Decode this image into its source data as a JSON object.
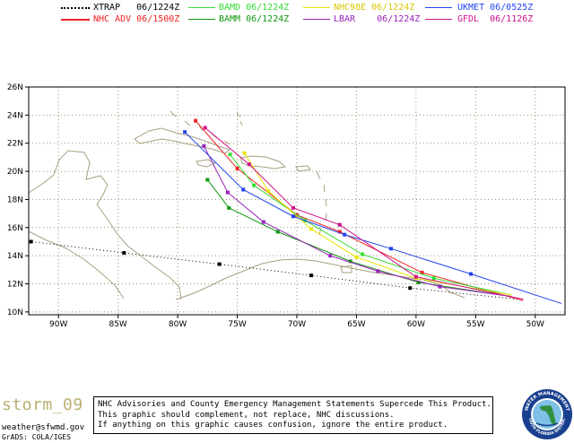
{
  "legend": {
    "xtrap": {
      "label": "XTRAP   06/1224Z",
      "color": "#000000",
      "style": "dotted"
    },
    "nhc_adv": {
      "label": "NHC ADV 06/1500Z",
      "color": "#ee2222",
      "style": "solid"
    },
    "bamd": {
      "label": "BAMD 06/1224Z",
      "color": "#33dd33",
      "style": "solid"
    },
    "bamm": {
      "label": "BAMM 06/1224Z",
      "color": "#119911",
      "style": "solid"
    },
    "nhc98e": {
      "label": "NHC98E 06/1224Z",
      "color": "#e6e600",
      "style": "solid"
    },
    "lbar": {
      "label": "LBAR    06/1224Z",
      "color": "#9922bb",
      "style": "solid"
    },
    "ukmet": {
      "label": "UKMET 06/0525Z",
      "color": "#2244ee",
      "style": "solid"
    },
    "gfdl": {
      "label": "GFDL  06/1126Z",
      "color": "#cc1188",
      "style": "solid"
    }
  },
  "axes": {
    "x_ticks": [
      "90W",
      "85W",
      "80W",
      "75W",
      "70W",
      "65W",
      "60W",
      "55W",
      "50W"
    ],
    "y_ticks": [
      "26N",
      "24N",
      "22N",
      "20N",
      "18N",
      "16N",
      "14N",
      "12N",
      "10N"
    ]
  },
  "chart_data": {
    "type": "line",
    "x_unit": "longitude (deg W)",
    "y_unit": "latitude (deg N)",
    "xlim": [
      -92.5,
      -47.5
    ],
    "ylim": [
      9.8,
      26
    ],
    "series": [
      {
        "name": "XTRAP",
        "color": "#000000",
        "dash": "1,3",
        "points": [
          [
            -51.5,
            10.9
          ],
          [
            -60.5,
            11.7
          ],
          [
            -68.8,
            12.6
          ],
          [
            -76.5,
            13.4
          ],
          [
            -84.5,
            14.2
          ],
          [
            -92.3,
            15.0
          ]
        ]
      },
      {
        "name": "NHC ADV",
        "color": "#ee2222",
        "points": [
          [
            -51.0,
            10.8
          ],
          [
            -59.5,
            12.8
          ],
          [
            -66.4,
            15.7
          ],
          [
            -70.0,
            16.9
          ],
          [
            -75.0,
            20.2
          ],
          [
            -78.5,
            23.6
          ]
        ]
      },
      {
        "name": "BAMD",
        "color": "#33dd33",
        "points": [
          [
            -52.0,
            11.2
          ],
          [
            -58.5,
            12.4
          ],
          [
            -64.5,
            14.1
          ],
          [
            -69.3,
            16.5
          ],
          [
            -73.6,
            19.0
          ],
          [
            -75.6,
            21.2
          ]
        ]
      },
      {
        "name": "BAMM",
        "color": "#119911",
        "points": [
          [
            -52.0,
            11.1
          ],
          [
            -59.8,
            12.1
          ],
          [
            -65.5,
            13.6
          ],
          [
            -71.6,
            15.7
          ],
          [
            -75.7,
            17.4
          ],
          [
            -77.5,
            19.4
          ]
        ]
      },
      {
        "name": "NHC98E",
        "color": "#e6e600",
        "points": [
          [
            -52.0,
            11.2
          ],
          [
            -60.0,
            12.4
          ],
          [
            -65.0,
            13.9
          ],
          [
            -68.8,
            15.9
          ],
          [
            -72.4,
            18.6
          ],
          [
            -74.4,
            21.3
          ]
        ]
      },
      {
        "name": "LBAR",
        "color": "#9922bb",
        "points": [
          [
            -52.0,
            11.1
          ],
          [
            -58.0,
            11.8
          ],
          [
            -63.2,
            12.9
          ],
          [
            -67.2,
            14.0
          ],
          [
            -72.8,
            16.4
          ],
          [
            -75.8,
            18.5
          ],
          [
            -77.8,
            21.8
          ]
        ]
      },
      {
        "name": "UKMET",
        "color": "#2244ee",
        "points": [
          [
            -47.8,
            10.6
          ],
          [
            -55.4,
            12.7
          ],
          [
            -62.1,
            14.5
          ],
          [
            -66.0,
            15.5
          ],
          [
            -70.3,
            16.8
          ],
          [
            -74.5,
            18.7
          ],
          [
            -79.4,
            22.8
          ]
        ]
      },
      {
        "name": "GFDL",
        "color": "#cc1188",
        "points": [
          [
            -51.0,
            10.9
          ],
          [
            -60.0,
            12.5
          ],
          [
            -66.4,
            16.2
          ],
          [
            -70.3,
            17.4
          ],
          [
            -74.0,
            20.5
          ],
          [
            -77.7,
            23.1
          ]
        ]
      }
    ]
  },
  "footer": {
    "storm_name": "storm_09",
    "email": "weather@sfwmd.gov",
    "grads": "GrADS: COLA/IGES",
    "disclaimer_lines": [
      "NHC Advisories and County Emergency Management Statements Supercede This Product.",
      "This graphic should complement, not replace, NHC discussions.",
      "If anything on this graphic causes confusion, ignore the entire product."
    ],
    "logo_text": "SOUTH FLORIDA WATER MANAGEMENT DISTRICT"
  }
}
